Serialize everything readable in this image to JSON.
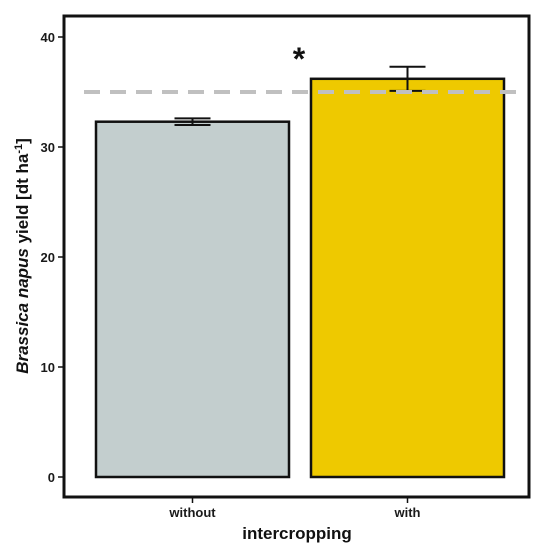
{
  "chart_data": {
    "type": "bar",
    "categories": [
      "without",
      "with"
    ],
    "values": [
      32.3,
      36.2
    ],
    "errors": [
      {
        "low": 32.0,
        "high": 32.6
      },
      {
        "low": 35.1,
        "high": 37.3
      }
    ],
    "colors": [
      "#c3cece",
      "#eec900"
    ],
    "bar_edge_color": "#111111",
    "xlabel": "intercropping",
    "ylabel": {
      "italic": "Brassica napus",
      "plain": " yield [dt ha",
      "sup": "-1",
      "end": "]"
    },
    "ylim": [
      0,
      42
    ],
    "yticks": [
      0,
      10,
      20,
      30,
      40
    ],
    "reference_line": {
      "value": 35,
      "color": "#c0c0c0",
      "style": "dashed"
    },
    "annotation": {
      "text": "*",
      "category": "with"
    },
    "grid": false
  }
}
